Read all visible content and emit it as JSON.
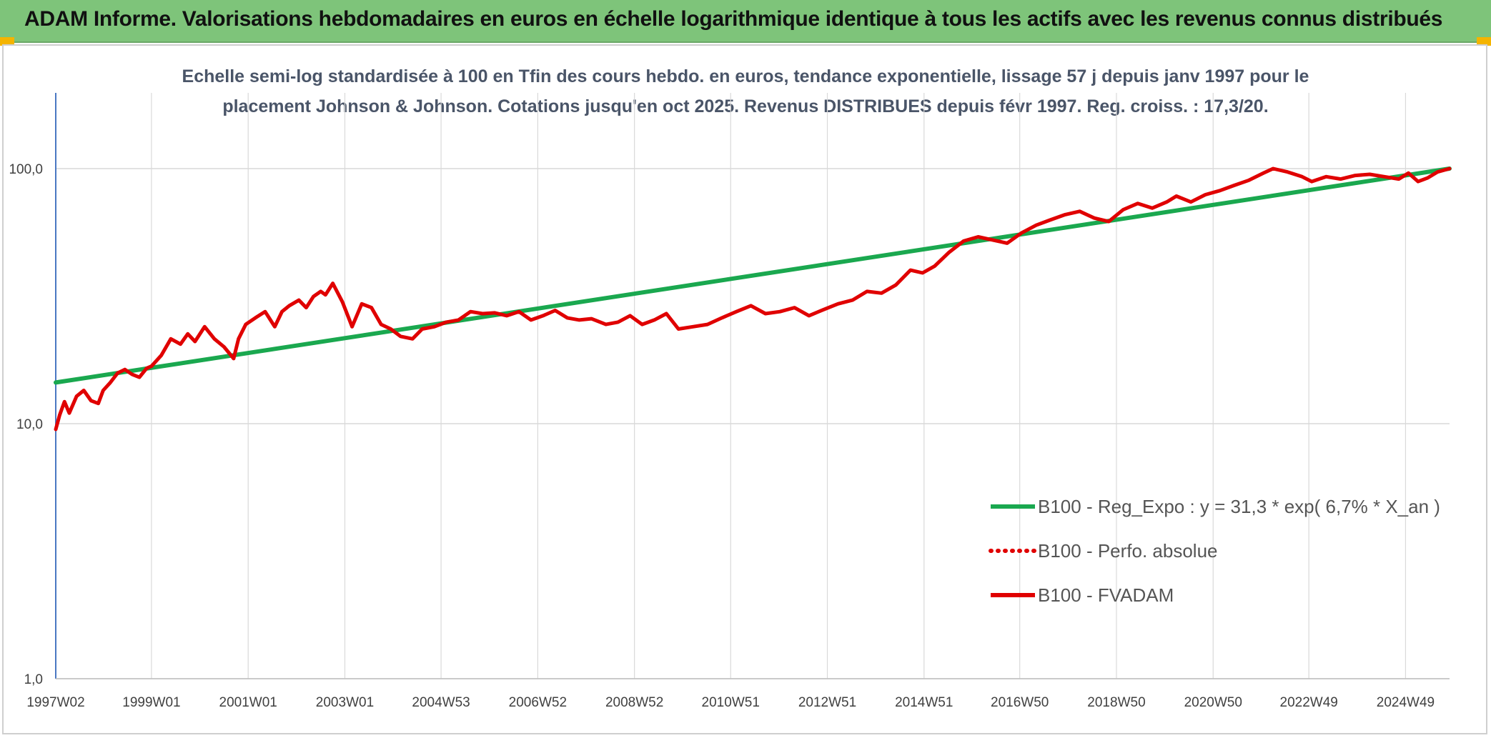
{
  "header": {
    "title": "ADAM Informe. Valorisations hebdomadaires en euros en échelle logarithmique identique à tous les actifs avec les revenus connus distribués",
    "accent_color": "#7ec47a"
  },
  "chart_data": {
    "type": "line",
    "title_line1": "Echelle semi-log standardisée à 100 en Tfin des cours hebdo. en euros, tendance exponentielle, lissage 57 j depuis janv 1997 pour le",
    "title_line2": "placement Johnson & Johnson. Cotations jusqu'en oct 2025. Revenus DISTRIBUES depuis févr 1997. Reg. croiss. : 17,3/20.",
    "xlabel": "",
    "ylabel": "",
    "y_scale": "log",
    "ylim": [
      1,
      200
    ],
    "x_range": [
      1997.02,
      2025.85
    ],
    "y_ticks": [
      {
        "value": 1,
        "label": "1,0"
      },
      {
        "value": 10,
        "label": "10,0"
      },
      {
        "value": 100,
        "label": "100,0"
      }
    ],
    "x_ticks": [
      {
        "x": 1997.02,
        "label": "1997W02"
      },
      {
        "x": 1999.0,
        "label": "1999W01"
      },
      {
        "x": 2001.0,
        "label": "2001W01"
      },
      {
        "x": 2003.0,
        "label": "2003W01"
      },
      {
        "x": 2004.99,
        "label": "2004W53"
      },
      {
        "x": 2006.99,
        "label": "2006W52"
      },
      {
        "x": 2008.99,
        "label": "2008W52"
      },
      {
        "x": 2010.98,
        "label": "2010W51"
      },
      {
        "x": 2012.98,
        "label": "2012W51"
      },
      {
        "x": 2014.98,
        "label": "2014W51"
      },
      {
        "x": 2016.96,
        "label": "2016W50"
      },
      {
        "x": 2018.96,
        "label": "2018W50"
      },
      {
        "x": 2020.96,
        "label": "2020W50"
      },
      {
        "x": 2022.94,
        "label": "2022W49"
      },
      {
        "x": 2024.94,
        "label": "2024W49"
      }
    ],
    "grid": "vertical and horizontal",
    "legend_position": "bottom-right",
    "series": [
      {
        "name": "B100 - Reg_Expo : y = 31,3 * exp( 6,7% *  X_an )",
        "color": "#1aa84f",
        "style": "solid",
        "x": [
          1997.02,
          2025.85
        ],
        "y": [
          14.5,
          100
        ]
      },
      {
        "name": "B100 - Perfo. absolue",
        "color": "#e00000",
        "style": "dotted",
        "x": [],
        "y": []
      },
      {
        "name": "B100 - FVADAM",
        "color": "#e00000",
        "style": "solid",
        "x": [
          1997.02,
          1997.1,
          1997.2,
          1997.3,
          1997.45,
          1997.6,
          1997.75,
          1997.9,
          1998.0,
          1998.15,
          1998.3,
          1998.45,
          1998.6,
          1998.75,
          1998.9,
          1999.0,
          1999.2,
          1999.4,
          1999.6,
          1999.75,
          1999.9,
          2000.1,
          2000.3,
          2000.5,
          2000.7,
          2000.8,
          2000.95,
          2001.15,
          2001.35,
          2001.55,
          2001.7,
          2001.85,
          2002.05,
          2002.2,
          2002.35,
          2002.5,
          2002.6,
          2002.75,
          2002.95,
          2003.15,
          2003.35,
          2003.55,
          2003.75,
          2003.95,
          2004.15,
          2004.4,
          2004.6,
          2004.85,
          2005.1,
          2005.35,
          2005.6,
          2005.85,
          2006.1,
          2006.35,
          2006.6,
          2006.85,
          2007.1,
          2007.35,
          2007.6,
          2007.85,
          2008.1,
          2008.4,
          2008.65,
          2008.9,
          2009.15,
          2009.4,
          2009.65,
          2009.9,
          2010.2,
          2010.5,
          2010.8,
          2011.1,
          2011.4,
          2011.7,
          2012.0,
          2012.3,
          2012.6,
          2012.9,
          2013.2,
          2013.5,
          2013.8,
          2014.1,
          2014.4,
          2014.7,
          2014.95,
          2015.2,
          2015.5,
          2015.8,
          2016.1,
          2016.4,
          2016.7,
          2017.0,
          2017.3,
          2017.6,
          2017.9,
          2018.2,
          2018.5,
          2018.8,
          2019.1,
          2019.4,
          2019.7,
          2020.0,
          2020.2,
          2020.5,
          2020.8,
          2021.1,
          2021.4,
          2021.7,
          2022.0,
          2022.2,
          2022.5,
          2022.8,
          2023.0,
          2023.3,
          2023.6,
          2023.9,
          2024.2,
          2024.5,
          2024.8,
          2025.0,
          2025.2,
          2025.4,
          2025.6,
          2025.85
        ],
        "y": [
          9.5,
          10.8,
          12.2,
          11.0,
          12.8,
          13.5,
          12.3,
          12.0,
          13.5,
          14.5,
          15.8,
          16.3,
          15.6,
          15.2,
          16.5,
          16.8,
          18.5,
          21.5,
          20.5,
          22.5,
          21.0,
          24.0,
          21.5,
          20.0,
          18.0,
          21.5,
          24.5,
          26.0,
          27.5,
          24.0,
          27.5,
          29.0,
          30.5,
          28.5,
          31.5,
          33.0,
          32.0,
          35.5,
          30.0,
          24.0,
          29.5,
          28.5,
          24.5,
          23.5,
          22.0,
          21.5,
          23.5,
          24.0,
          25.0,
          25.5,
          27.5,
          27.0,
          27.2,
          26.5,
          27.5,
          25.5,
          26.5,
          27.8,
          26.0,
          25.5,
          25.8,
          24.5,
          25.0,
          26.5,
          24.5,
          25.5,
          27.0,
          23.5,
          24.0,
          24.5,
          26.0,
          27.5,
          29.0,
          27.0,
          27.5,
          28.5,
          26.5,
          28.0,
          29.5,
          30.5,
          33.0,
          32.5,
          35.0,
          40.0,
          39.0,
          41.5,
          47.0,
          52.0,
          54.0,
          52.5,
          51.0,
          56.0,
          60.0,
          63.0,
          66.0,
          68.0,
          64.0,
          62.0,
          69.0,
          73.0,
          70.0,
          74.0,
          78.0,
          74.0,
          79.0,
          82.0,
          86.0,
          90.0,
          96.0,
          100.0,
          97.0,
          93.0,
          89.0,
          93.0,
          91.0,
          94.0,
          95.0,
          93.0,
          91.0,
          96.0,
          89.0,
          92.0,
          97.0,
          100.0
        ]
      }
    ]
  }
}
